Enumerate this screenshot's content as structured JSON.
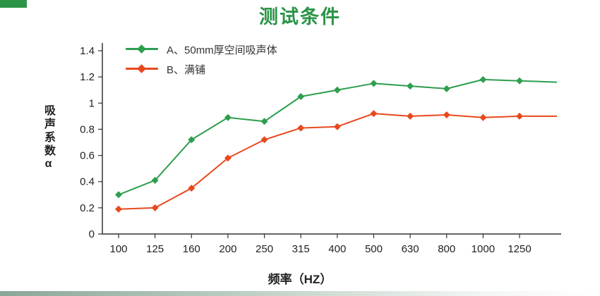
{
  "chart_data": {
    "type": "line",
    "title": "测试条件",
    "xlabel": "频率（HZ）",
    "ylabel": "吸声系数α",
    "categories": [
      "100",
      "125",
      "160",
      "200",
      "250",
      "315",
      "400",
      "500",
      "630",
      "800",
      "1000",
      "1250"
    ],
    "y_ticks": [
      0,
      0.2,
      0.4,
      0.6,
      0.8,
      1,
      1.2,
      1.4
    ],
    "ylim": [
      0,
      1.4
    ],
    "grid": false,
    "legend_position": "top-left",
    "series": [
      {
        "name": "A、50mm厚空间吸声体",
        "color": "#2e9e4f",
        "marker": "diamond",
        "values": [
          0.3,
          0.41,
          0.72,
          0.89,
          0.86,
          1.05,
          1.1,
          1.15,
          1.13,
          1.11,
          1.18,
          1.17
        ],
        "tail_value": 1.16
      },
      {
        "name": "B、满铺",
        "color": "#e8491d",
        "marker": "diamond",
        "values": [
          0.19,
          0.2,
          0.35,
          0.58,
          0.72,
          0.81,
          0.82,
          0.92,
          0.9,
          0.91,
          0.89,
          0.9
        ],
        "tail_value": 0.9
      }
    ]
  }
}
